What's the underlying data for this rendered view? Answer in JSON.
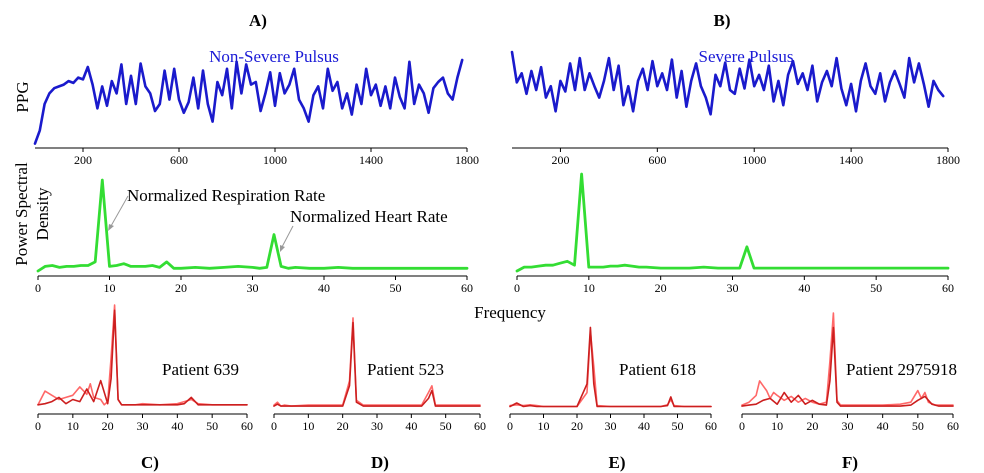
{
  "panel_letters": [
    "A)",
    "B)",
    "C)",
    "D)",
    "E)",
    "F)"
  ],
  "labels": {
    "ppg_ylabel": "PPG",
    "psd_ylabel_line1": "Power Spectral",
    "psd_ylabel_line2": "Density",
    "frequency_xlabel": "Frequency",
    "annot_resp": "Normalized Respiration Rate",
    "annot_heart": "Normalized Heart Rate"
  },
  "chart_data": [
    {
      "id": "A-ppg",
      "type": "line",
      "title": "Non-Severe Pulsus",
      "ylabel": "PPG",
      "xlim": [
        0,
        1800
      ],
      "xticks": [
        200,
        600,
        1000,
        1400,
        1800
      ],
      "series": [
        {
          "color": "#1a1acc",
          "x": [
            0,
            20,
            40,
            60,
            80,
            100,
            120,
            140,
            160,
            180,
            200,
            220,
            240,
            260,
            280,
            300,
            320,
            340,
            360,
            380,
            400,
            420,
            440,
            460,
            480,
            500,
            520,
            540,
            560,
            580,
            600,
            620,
            640,
            660,
            680,
            700,
            720,
            740,
            760,
            780,
            800,
            820,
            840,
            860,
            880,
            900,
            920,
            940,
            960,
            980,
            1000,
            1020,
            1040,
            1060,
            1080,
            1100,
            1120,
            1140,
            1160,
            1180,
            1200,
            1220,
            1240,
            1260,
            1280,
            1300,
            1320,
            1340,
            1360,
            1380,
            1400,
            1420,
            1440,
            1460,
            1480,
            1500,
            1520,
            1540,
            1560,
            1580,
            1600,
            1620,
            1640,
            1660,
            1680,
            1700,
            1720,
            1740,
            1760,
            1780
          ],
          "y": [
            0.05,
            0.2,
            0.5,
            0.62,
            0.68,
            0.7,
            0.72,
            0.76,
            0.74,
            0.8,
            0.78,
            0.92,
            0.72,
            0.45,
            0.7,
            0.48,
            0.76,
            0.62,
            0.95,
            0.5,
            0.82,
            0.5,
            0.96,
            0.7,
            0.62,
            0.42,
            0.5,
            0.88,
            0.55,
            0.9,
            0.55,
            0.4,
            0.52,
            0.8,
            0.45,
            0.88,
            0.5,
            0.3,
            0.75,
            0.6,
            0.9,
            0.45,
            0.98,
            0.62,
            0.95,
            0.72,
            0.75,
            0.42,
            0.62,
            0.86,
            0.48,
            0.85,
            0.62,
            0.72,
            0.9,
            0.55,
            0.45,
            0.3,
            0.6,
            0.7,
            0.45,
            0.9,
            0.65,
            0.75,
            0.45,
            0.62,
            0.38,
            0.72,
            0.5,
            0.9,
            0.6,
            0.72,
            0.48,
            0.7,
            0.45,
            0.8,
            0.58,
            0.45,
            0.98,
            0.5,
            0.72,
            0.62,
            0.4,
            0.68,
            0.75,
            0.8,
            0.62,
            0.55,
            0.8,
            1.0
          ]
        }
      ]
    },
    {
      "id": "B-ppg",
      "type": "line",
      "title": "Severe Pulsus",
      "xlim": [
        0,
        1800
      ],
      "xticks": [
        200,
        600,
        1000,
        1400,
        1800
      ],
      "series": [
        {
          "color": "#1a1acc",
          "x": [
            0,
            20,
            40,
            60,
            80,
            100,
            120,
            140,
            160,
            180,
            200,
            220,
            240,
            260,
            280,
            300,
            320,
            340,
            360,
            380,
            400,
            420,
            440,
            460,
            480,
            500,
            520,
            540,
            560,
            580,
            600,
            620,
            640,
            660,
            680,
            700,
            720,
            740,
            760,
            780,
            800,
            820,
            840,
            860,
            880,
            900,
            920,
            940,
            960,
            980,
            1000,
            1020,
            1040,
            1060,
            1080,
            1100,
            1120,
            1140,
            1160,
            1180,
            1200,
            1220,
            1240,
            1260,
            1280,
            1300,
            1320,
            1340,
            1360,
            1380,
            1400,
            1420,
            1440,
            1460,
            1480,
            1500,
            1520,
            1540,
            1560,
            1580,
            1600,
            1620,
            1640,
            1660,
            1680,
            1700,
            1720,
            1740,
            1760,
            1780
          ],
          "y": [
            1.0,
            0.6,
            0.72,
            0.45,
            0.75,
            0.5,
            0.8,
            0.4,
            0.55,
            0.22,
            0.62,
            0.48,
            0.85,
            0.5,
            0.92,
            0.5,
            0.72,
            0.55,
            0.4,
            0.62,
            0.92,
            0.5,
            0.82,
            0.3,
            0.55,
            0.22,
            0.62,
            0.78,
            0.5,
            0.88,
            0.55,
            0.72,
            0.5,
            0.9,
            0.4,
            0.75,
            0.28,
            0.62,
            0.85,
            0.55,
            0.4,
            0.18,
            0.7,
            0.55,
            0.86,
            0.5,
            0.45,
            0.78,
            0.52,
            0.9,
            0.55,
            0.7,
            0.5,
            0.82,
            0.35,
            0.62,
            0.3,
            0.7,
            0.88,
            0.58,
            0.72,
            0.5,
            0.82,
            0.35,
            0.6,
            0.75,
            0.55,
            0.92,
            0.52,
            0.3,
            0.58,
            0.22,
            0.62,
            0.85,
            0.55,
            0.45,
            0.72,
            0.35,
            0.6,
            0.75,
            0.58,
            0.4,
            0.92,
            0.6,
            0.85,
            0.58,
            0.28,
            0.62,
            0.5,
            0.42
          ]
        }
      ]
    },
    {
      "id": "A-psd",
      "type": "line",
      "ylabel": "Power Spectral Density",
      "xlim": [
        0,
        60
      ],
      "xticks": [
        0,
        10,
        20,
        30,
        40,
        50,
        60
      ],
      "series": [
        {
          "color": "#33dd33",
          "x": [
            0,
            1,
            2,
            3,
            4,
            5,
            6,
            7,
            8,
            9,
            10,
            11,
            12,
            13,
            14,
            15,
            16,
            17,
            18,
            19,
            20,
            22,
            24,
            26,
            28,
            30,
            31,
            32,
            33,
            34,
            35,
            36,
            38,
            40,
            42,
            44,
            46,
            48,
            50,
            52,
            54,
            56,
            58,
            60
          ],
          "y": [
            0,
            0.05,
            0.06,
            0.04,
            0.05,
            0.05,
            0.06,
            0.06,
            0.1,
            1.0,
            0.05,
            0.06,
            0.08,
            0.05,
            0.05,
            0.05,
            0.06,
            0.04,
            0.1,
            0.03,
            0.03,
            0.04,
            0.03,
            0.04,
            0.05,
            0.04,
            0.03,
            0.04,
            0.4,
            0.05,
            0.03,
            0.04,
            0.03,
            0.03,
            0.04,
            0.03,
            0.03,
            0.03,
            0.03,
            0.03,
            0.03,
            0.03,
            0.03,
            0.03
          ]
        }
      ]
    },
    {
      "id": "B-psd",
      "type": "line",
      "xlim": [
        0,
        60
      ],
      "xticks": [
        0,
        10,
        20,
        30,
        40,
        50,
        60
      ],
      "series": [
        {
          "color": "#33dd33",
          "x": [
            0,
            1,
            2,
            3,
            4,
            5,
            6,
            7,
            8,
            9,
            10,
            11,
            12,
            13,
            14,
            15,
            16,
            17,
            18,
            20,
            22,
            24,
            26,
            28,
            30,
            31,
            32,
            33,
            34,
            36,
            38,
            40,
            42,
            44,
            46,
            48,
            50,
            52,
            54,
            56,
            58,
            60
          ],
          "y": [
            0,
            0.04,
            0.04,
            0.05,
            0.06,
            0.06,
            0.08,
            0.1,
            0.06,
            1.0,
            0.04,
            0.04,
            0.04,
            0.05,
            0.05,
            0.06,
            0.05,
            0.04,
            0.04,
            0.03,
            0.03,
            0.03,
            0.04,
            0.03,
            0.03,
            0.03,
            0.25,
            0.03,
            0.03,
            0.03,
            0.03,
            0.03,
            0.03,
            0.03,
            0.03,
            0.03,
            0.03,
            0.03,
            0.03,
            0.03,
            0.03,
            0.03
          ]
        }
      ]
    },
    {
      "id": "C",
      "type": "line",
      "annotation": "Patient 639",
      "xlim": [
        0,
        60
      ],
      "xticks": [
        0,
        10,
        20,
        30,
        40,
        50,
        60
      ],
      "series": [
        {
          "color": "#ff4d4d",
          "x": [
            0,
            2,
            4,
            6,
            8,
            10,
            12,
            14,
            15,
            16,
            18,
            19,
            20,
            21,
            22,
            23,
            24,
            26,
            28,
            30,
            35,
            40,
            42,
            44,
            46,
            50,
            55,
            60
          ],
          "y": [
            0.05,
            0.18,
            0.14,
            0.1,
            0.12,
            0.14,
            0.22,
            0.15,
            0.25,
            0.12,
            0.1,
            0.05,
            0.08,
            0.5,
            1.0,
            0.1,
            0.05,
            0.05,
            0.05,
            0.06,
            0.05,
            0.06,
            0.08,
            0.1,
            0.06,
            0.05,
            0.05,
            0.05
          ]
        },
        {
          "color": "#cc1f1f",
          "x": [
            0,
            2,
            4,
            6,
            8,
            10,
            12,
            14,
            16,
            18,
            20,
            21,
            22,
            23,
            24,
            26,
            28,
            30,
            35,
            40,
            42,
            44,
            46,
            50,
            55,
            60
          ],
          "y": [
            0.05,
            0.06,
            0.08,
            0.12,
            0.06,
            0.1,
            0.08,
            0.2,
            0.08,
            0.28,
            0.06,
            0.3,
            0.95,
            0.1,
            0.05,
            0.05,
            0.05,
            0.05,
            0.05,
            0.05,
            0.06,
            0.12,
            0.05,
            0.05,
            0.05,
            0.05
          ]
        }
      ]
    },
    {
      "id": "D",
      "type": "line",
      "annotation": "Patient 523",
      "xlim": [
        0,
        60
      ],
      "xticks": [
        0,
        10,
        20,
        30,
        40,
        50,
        60
      ],
      "series": [
        {
          "color": "#ff4d4d",
          "x": [
            0,
            1,
            2,
            3,
            5,
            10,
            15,
            20,
            22,
            23,
            24,
            26,
            30,
            35,
            40,
            43,
            45,
            46,
            47,
            50,
            55,
            60
          ],
          "y": [
            0.05,
            0.08,
            0.04,
            0.05,
            0.04,
            0.05,
            0.05,
            0.05,
            0.3,
            0.95,
            0.1,
            0.05,
            0.05,
            0.05,
            0.05,
            0.05,
            0.18,
            0.25,
            0.05,
            0.05,
            0.05,
            0.05
          ]
        },
        {
          "color": "#cc1f1f",
          "x": [
            0,
            1,
            2,
            3,
            5,
            10,
            15,
            20,
            22,
            23,
            24,
            26,
            30,
            35,
            40,
            43,
            45,
            46,
            47,
            50,
            55,
            60
          ],
          "y": [
            0.04,
            0.06,
            0.04,
            0.04,
            0.04,
            0.04,
            0.04,
            0.04,
            0.25,
            0.9,
            0.08,
            0.04,
            0.04,
            0.04,
            0.04,
            0.04,
            0.12,
            0.2,
            0.04,
            0.04,
            0.04,
            0.04
          ]
        }
      ]
    },
    {
      "id": "E",
      "type": "line",
      "annotation": "Patient 618",
      "xlim": [
        0,
        60
      ],
      "xticks": [
        0,
        10,
        20,
        30,
        40,
        50,
        60
      ],
      "series": [
        {
          "color": "#ff4d4d",
          "x": [
            0,
            2,
            4,
            6,
            8,
            10,
            15,
            20,
            23,
            24,
            25,
            26,
            30,
            35,
            40,
            45,
            47,
            48,
            49,
            52,
            56,
            60
          ],
          "y": [
            0.05,
            0.06,
            0.05,
            0.06,
            0.05,
            0.04,
            0.04,
            0.04,
            0.2,
            0.9,
            0.5,
            0.05,
            0.04,
            0.04,
            0.04,
            0.04,
            0.06,
            0.12,
            0.05,
            0.04,
            0.04,
            0.04
          ]
        },
        {
          "color": "#cc1f1f",
          "x": [
            0,
            2,
            4,
            6,
            8,
            10,
            15,
            20,
            23,
            24,
            25,
            26,
            30,
            35,
            40,
            45,
            47,
            48,
            49,
            52,
            56,
            60
          ],
          "y": [
            0.04,
            0.08,
            0.04,
            0.05,
            0.04,
            0.04,
            0.04,
            0.04,
            0.3,
            0.95,
            0.3,
            0.04,
            0.04,
            0.04,
            0.04,
            0.04,
            0.05,
            0.15,
            0.04,
            0.04,
            0.04,
            0.04
          ]
        }
      ]
    },
    {
      "id": "F",
      "type": "line",
      "annotation": "Patient 2975918",
      "xlim": [
        0,
        60
      ],
      "xticks": [
        0,
        10,
        20,
        30,
        40,
        50,
        60
      ],
      "series": [
        {
          "color": "#ff4d4d",
          "x": [
            0,
            2,
            4,
            5,
            6,
            7,
            8,
            9,
            10,
            12,
            14,
            16,
            18,
            20,
            22,
            24,
            25,
            26,
            27,
            28,
            30,
            35,
            40,
            45,
            48,
            50,
            51,
            52,
            53,
            55,
            60
          ],
          "y": [
            0.05,
            0.08,
            0.15,
            0.3,
            0.25,
            0.2,
            0.12,
            0.18,
            0.15,
            0.1,
            0.14,
            0.08,
            0.12,
            0.08,
            0.06,
            0.08,
            0.5,
            1.0,
            0.1,
            0.05,
            0.05,
            0.05,
            0.05,
            0.06,
            0.08,
            0.2,
            0.12,
            0.18,
            0.08,
            0.05,
            0.05
          ]
        },
        {
          "color": "#cc1f1f",
          "x": [
            0,
            2,
            4,
            6,
            8,
            10,
            12,
            14,
            16,
            18,
            20,
            22,
            24,
            25,
            26,
            27,
            28,
            30,
            35,
            40,
            45,
            48,
            50,
            52,
            54,
            56,
            60
          ],
          "y": [
            0.04,
            0.05,
            0.06,
            0.1,
            0.12,
            0.06,
            0.18,
            0.08,
            0.15,
            0.06,
            0.1,
            0.06,
            0.05,
            0.3,
            0.85,
            0.08,
            0.04,
            0.04,
            0.04,
            0.04,
            0.04,
            0.05,
            0.1,
            0.14,
            0.06,
            0.04,
            0.04
          ]
        }
      ]
    }
  ]
}
